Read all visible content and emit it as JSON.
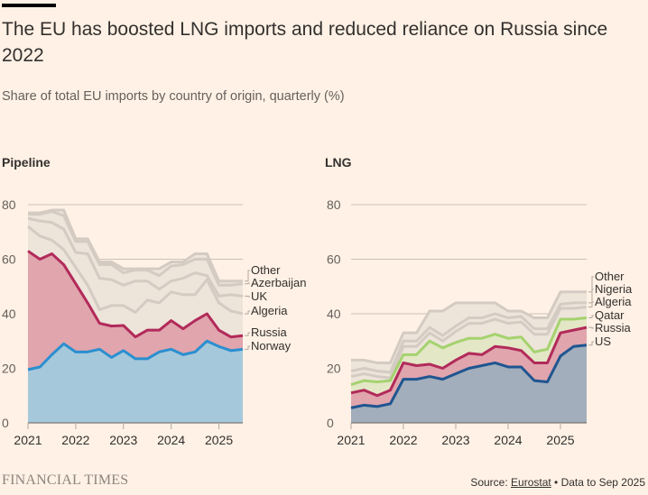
{
  "header": {
    "title": "The EU has boosted LNG imports and reduced reliance on Russia since 2022",
    "subtitle": "Share of total EU imports by country of origin, quarterly (%)"
  },
  "footer": {
    "brand": "FINANCIAL TIMES",
    "source_prefix": "Source: ",
    "source_link": "Eurostat",
    "source_suffix": " • Data to Sep 2025"
  },
  "colors": {
    "background": "#fff1e5",
    "grey_fill": "#ede4da",
    "grey_line": "#d4cbc3",
    "pipeline_norway_fill": "#a6c8db",
    "pipeline_norway_line": "#2a8fd0",
    "russia_fill": "#e0a5ad",
    "russia_line": "#b22a5a",
    "lng_us_fill": "#a2aebb",
    "lng_us_line": "#1f5591",
    "lng_qatar_fill": "#e3e7c6",
    "lng_qatar_line": "#a5d26f"
  },
  "chart_data": [
    {
      "type": "area",
      "title": "Pipeline",
      "xlabel": "",
      "ylabel": "",
      "stacked": true,
      "ylim": [
        0,
        80
      ],
      "yticks": [
        0,
        20,
        40,
        60,
        80
      ],
      "xticks": [
        "2021",
        "2022",
        "2023",
        "2024",
        "2025"
      ],
      "x": [
        "2021Q1",
        "2021Q2",
        "2021Q3",
        "2021Q4",
        "2022Q1",
        "2022Q2",
        "2022Q3",
        "2022Q4",
        "2023Q1",
        "2023Q2",
        "2023Q3",
        "2023Q4",
        "2024Q1",
        "2024Q2",
        "2024Q3",
        "2024Q4",
        "2025Q1",
        "2025Q2",
        "2025Q3"
      ],
      "note": "values are cumulative stack tops (%)",
      "series": [
        {
          "name": "Norway",
          "style": "norway",
          "cumulative": [
            19.5,
            20.5,
            25,
            29,
            26,
            26,
            27,
            24,
            26.5,
            23.5,
            23.5,
            26,
            27,
            25,
            26,
            30,
            28,
            26.5,
            27
          ]
        },
        {
          "name": "Russia",
          "style": "russia",
          "cumulative": [
            63,
            60,
            62,
            58,
            51,
            44,
            36.5,
            35.5,
            35.7,
            31.5,
            34,
            34,
            37.5,
            34.5,
            37.5,
            40,
            34,
            31.5,
            32
          ]
        },
        {
          "name": "Algeria",
          "style": "grey",
          "cumulative": [
            72,
            68.5,
            67,
            63.5,
            57,
            50.5,
            41.5,
            43,
            43,
            40.5,
            45,
            44,
            48,
            47,
            47,
            52.5,
            44,
            41,
            40
          ]
        },
        {
          "name": "UK",
          "style": "grey",
          "cumulative": [
            75,
            74,
            73.5,
            71,
            62.5,
            62,
            53,
            52.5,
            50.5,
            52,
            52,
            49,
            52,
            53,
            55,
            54,
            46.5,
            47,
            46.5
          ]
        },
        {
          "name": "Azerbaijan",
          "style": "grey",
          "cumulative": [
            76.5,
            76.5,
            77.5,
            76,
            66.5,
            66.5,
            58,
            58,
            55,
            56,
            56,
            54,
            57.5,
            58,
            60,
            60,
            50.5,
            50.5,
            51
          ]
        },
        {
          "name": "Other",
          "style": "grey",
          "cumulative": [
            77,
            77,
            78,
            78,
            67.5,
            67.5,
            59,
            59,
            56.5,
            56.5,
            56.5,
            56.5,
            59,
            59,
            62,
            62,
            52,
            52,
            52
          ]
        }
      ],
      "legend": "direct labels right"
    },
    {
      "type": "area",
      "title": "LNG",
      "xlabel": "",
      "ylabel": "",
      "stacked": true,
      "ylim": [
        0,
        80
      ],
      "yticks": [
        0,
        20,
        40,
        60,
        80
      ],
      "xticks": [
        "2021",
        "2022",
        "2023",
        "2024",
        "2025"
      ],
      "x": [
        "2021Q1",
        "2021Q2",
        "2021Q3",
        "2021Q4",
        "2022Q1",
        "2022Q2",
        "2022Q3",
        "2022Q4",
        "2023Q1",
        "2023Q2",
        "2023Q3",
        "2023Q4",
        "2024Q1",
        "2024Q2",
        "2024Q3",
        "2024Q4",
        "2025Q1",
        "2025Q2",
        "2025Q3"
      ],
      "note": "values are cumulative stack tops (%)",
      "series": [
        {
          "name": "US",
          "style": "us",
          "cumulative": [
            5.5,
            6.5,
            6,
            7,
            16,
            16,
            17,
            16,
            18,
            20,
            21,
            22,
            20.5,
            20.5,
            15.5,
            15,
            24.5,
            28,
            28.5
          ]
        },
        {
          "name": "Russia",
          "style": "russia",
          "cumulative": [
            11,
            12,
            10,
            12,
            22,
            21,
            21.5,
            20,
            23,
            25.5,
            25,
            28,
            27.5,
            26.5,
            22,
            22,
            33,
            34,
            35
          ]
        },
        {
          "name": "Qatar",
          "style": "qatar",
          "cumulative": [
            14,
            15.5,
            15,
            15.5,
            25,
            25,
            30,
            27.5,
            29.5,
            31,
            31,
            32.5,
            31,
            31.5,
            26,
            27,
            38,
            38,
            38.5
          ]
        },
        {
          "name": "Algeria",
          "style": "grey",
          "cumulative": [
            17,
            18,
            17,
            16.5,
            28,
            28,
            33,
            30,
            33.5,
            36.5,
            36.5,
            38,
            36.5,
            37,
            32.5,
            32.5,
            42,
            42,
            42.5
          ]
        },
        {
          "name": "Nigeria",
          "style": "grey",
          "cumulative": [
            19,
            20,
            19,
            18.5,
            30,
            30,
            35,
            32,
            35.5,
            38.5,
            38.5,
            40,
            38.5,
            39,
            34.5,
            34.5,
            43.5,
            44,
            44
          ]
        },
        {
          "name": "Other",
          "style": "grey",
          "cumulative": [
            23,
            23,
            22,
            22,
            33,
            33,
            41,
            41,
            44,
            44,
            44,
            44,
            41,
            41,
            38.5,
            38.5,
            48,
            48,
            48
          ]
        }
      ],
      "legend": "direct labels right"
    }
  ]
}
